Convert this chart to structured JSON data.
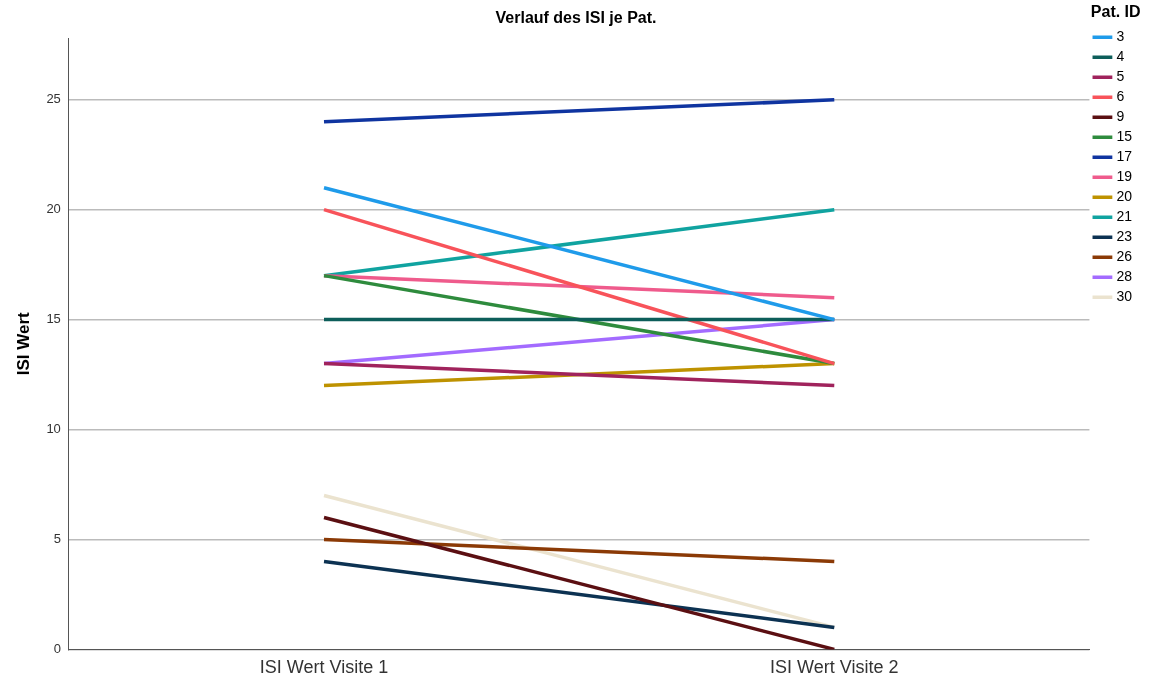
{
  "chart_data": {
    "type": "line",
    "title": "Verlauf des ISI je Pat.",
    "ylabel": "ISI Wert",
    "legend_title": "Pat. ID",
    "categories": [
      "ISI Wert Visite 1",
      "ISI Wert Visite 2"
    ],
    "ylim": [
      0,
      27.8
    ],
    "yticks": [
      0,
      5,
      10,
      15,
      20,
      25
    ],
    "grid": "y",
    "legend": "right",
    "marker": "none",
    "line_style": "solid",
    "series": [
      {
        "name": "3",
        "color": "#1f9bea",
        "values": [
          21,
          15
        ]
      },
      {
        "name": "4",
        "color": "#0d5e5a",
        "values": [
          15,
          15
        ]
      },
      {
        "name": "5",
        "color": "#a0235c",
        "values": [
          13,
          12
        ]
      },
      {
        "name": "6",
        "color": "#f8535a",
        "values": [
          20,
          13
        ]
      },
      {
        "name": "9",
        "color": "#5b0f12",
        "values": [
          6,
          0
        ]
      },
      {
        "name": "15",
        "color": "#2e8b3d",
        "values": [
          17,
          13
        ]
      },
      {
        "name": "17",
        "color": "#0f34a0",
        "values": [
          24,
          25
        ]
      },
      {
        "name": "19",
        "color": "#ef5b8c",
        "values": [
          17,
          16
        ]
      },
      {
        "name": "20",
        "color": "#be9200",
        "values": [
          12,
          13
        ]
      },
      {
        "name": "21",
        "color": "#10a3a0",
        "values": [
          17,
          20
        ]
      },
      {
        "name": "23",
        "color": "#0c3252",
        "values": [
          4,
          1
        ]
      },
      {
        "name": "26",
        "color": "#8b3a06",
        "values": [
          5,
          4
        ]
      },
      {
        "name": "28",
        "color": "#a36bff",
        "values": [
          13,
          15
        ]
      },
      {
        "name": "30",
        "color": "#ebe3cf",
        "values": [
          7,
          1
        ]
      }
    ]
  }
}
